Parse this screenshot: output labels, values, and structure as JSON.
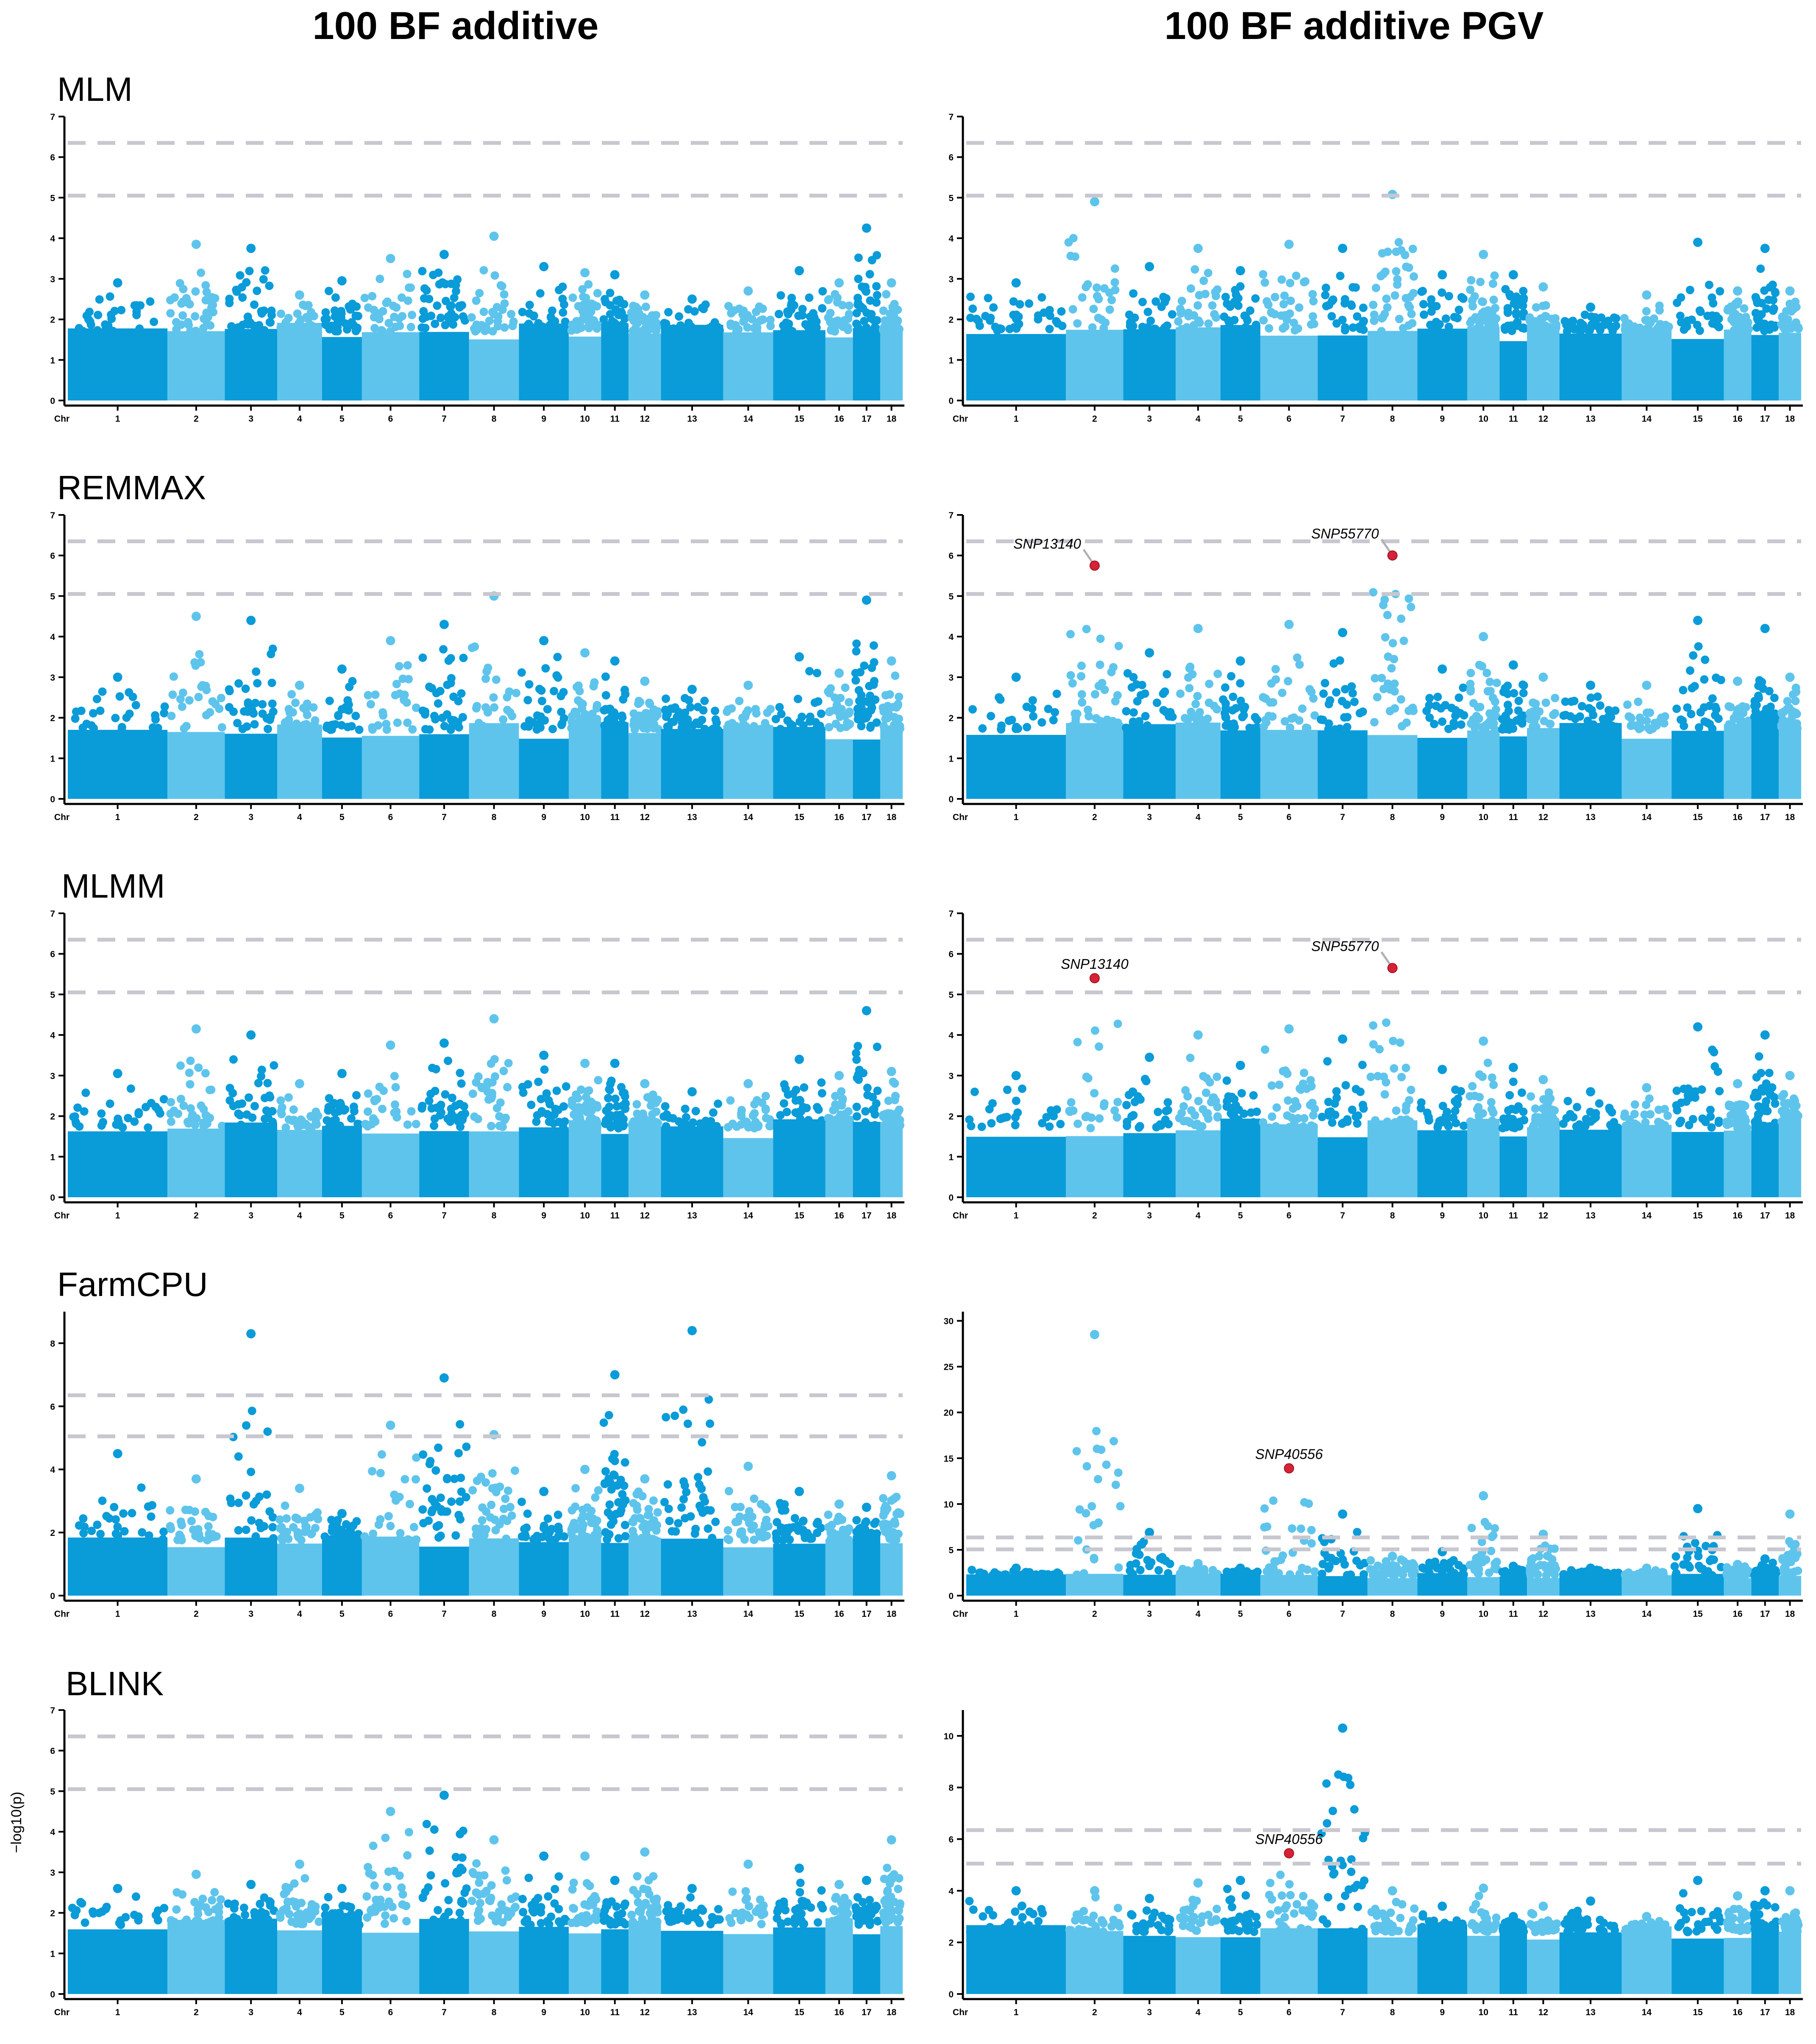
{
  "columns": [
    "100 BF additive",
    "100 BF additive PGV"
  ],
  "methods": [
    "MLM",
    "REMMAX",
    "MLMM",
    "FarmCPU",
    "BLINK"
  ],
  "y_axis_label": "−log10(p)",
  "colors": {
    "dark": "#0a9bd9",
    "light": "#5ec4ec",
    "threshold": "#c7c7cf",
    "highlight": "#d62236"
  },
  "chart_data": {
    "type": "scatter",
    "kind": "manhattan",
    "chromosomes": [
      "1",
      "2",
      "3",
      "4",
      "5",
      "6",
      "7",
      "8",
      "9",
      "10",
      "11",
      "12",
      "13",
      "14",
      "15",
      "16",
      "17",
      "18"
    ],
    "chr_label": "Chr",
    "thresholds": [
      5.05,
      6.35
    ],
    "panels": [
      {
        "method": "MLM",
        "column": "100 BF additive",
        "ylim": [
          0,
          7
        ],
        "yticks": [
          0,
          1,
          2,
          3,
          4,
          5,
          6,
          7
        ],
        "chr_peaks": [
          2.9,
          3.85,
          3.75,
          2.6,
          2.95,
          3.5,
          3.6,
          4.05,
          3.3,
          3.15,
          3.1,
          2.6,
          2.5,
          2.7,
          3.2,
          2.9,
          4.25,
          2.9
        ],
        "snps": []
      },
      {
        "method": "MLM",
        "column": "100 BF additive PGV",
        "ylim": [
          0,
          7
        ],
        "yticks": [
          0,
          1,
          2,
          3,
          4,
          5,
          6,
          7
        ],
        "chr_peaks": [
          2.9,
          4.9,
          3.3,
          3.75,
          3.2,
          3.85,
          3.75,
          5.08,
          3.1,
          3.6,
          3.1,
          2.8,
          2.3,
          2.6,
          3.9,
          2.7,
          3.75,
          2.7
        ],
        "snps": []
      },
      {
        "method": "REMMAX",
        "column": "100 BF additive",
        "ylim": [
          0,
          7
        ],
        "yticks": [
          0,
          1,
          2,
          3,
          4,
          5,
          6,
          7
        ],
        "chr_peaks": [
          3.0,
          4.5,
          4.4,
          2.8,
          3.2,
          3.9,
          4.3,
          5.0,
          3.9,
          3.6,
          3.4,
          2.9,
          2.7,
          2.8,
          3.5,
          3.1,
          4.9,
          3.4
        ],
        "snps": []
      },
      {
        "method": "REMMAX",
        "column": "100 BF additive PGV",
        "ylim": [
          0,
          7
        ],
        "yticks": [
          0,
          1,
          2,
          3,
          4,
          5,
          6,
          7
        ],
        "chr_peaks": [
          3.0,
          5.75,
          3.6,
          4.2,
          3.4,
          4.3,
          4.1,
          6.0,
          3.2,
          4.0,
          3.3,
          3.0,
          2.8,
          2.8,
          4.4,
          2.9,
          4.2,
          3.0
        ],
        "snps": [
          {
            "label": "SNP13140",
            "chr": "2",
            "value": 5.75
          },
          {
            "label": "SNP55770",
            "chr": "8",
            "value": 6.0
          }
        ]
      },
      {
        "method": "MLMM",
        "column": "100 BF additive",
        "ylim": [
          0,
          7
        ],
        "yticks": [
          0,
          1,
          2,
          3,
          4,
          5,
          6,
          7
        ],
        "chr_peaks": [
          3.05,
          4.15,
          4.0,
          2.8,
          3.05,
          3.75,
          3.8,
          4.4,
          3.5,
          3.3,
          3.3,
          2.8,
          2.6,
          2.8,
          3.4,
          3.0,
          4.6,
          3.1
        ],
        "snps": []
      },
      {
        "method": "MLMM",
        "column": "100 BF additive PGV",
        "ylim": [
          0,
          7
        ],
        "yticks": [
          0,
          1,
          2,
          3,
          4,
          5,
          6,
          7
        ],
        "chr_peaks": [
          3.0,
          5.4,
          3.45,
          4.0,
          3.25,
          4.15,
          3.9,
          5.65,
          3.15,
          3.85,
          3.2,
          2.9,
          2.6,
          2.7,
          4.2,
          2.8,
          4.0,
          3.0
        ],
        "snps": [
          {
            "label": "SNP13140",
            "chr": "2",
            "value": 5.4
          },
          {
            "label": "SNP55770",
            "chr": "8",
            "value": 5.65
          }
        ]
      },
      {
        "method": "FarmCPU",
        "column": "100 BF additive",
        "ylim": [
          0,
          9
        ],
        "yticks": [
          0,
          2,
          4,
          6,
          8
        ],
        "chr_peaks": [
          4.5,
          3.7,
          8.3,
          3.4,
          2.6,
          5.4,
          6.9,
          5.1,
          3.3,
          4.0,
          7.0,
          3.7,
          8.4,
          4.1,
          3.3,
          2.9,
          2.8,
          3.8
        ],
        "snps": []
      },
      {
        "method": "FarmCPU",
        "column": "100 BF additive PGV",
        "ylim": [
          0,
          31
        ],
        "yticks": [
          0,
          5,
          10,
          15,
          20,
          25,
          30
        ],
        "chr_peaks": [
          3.0,
          28.5,
          6.9,
          3.5,
          3.0,
          13.9,
          8.9,
          4.3,
          4.8,
          10.9,
          3.2,
          6.7,
          3.0,
          3.0,
          9.5,
          3.4,
          4.0,
          8.9
        ],
        "snps": [
          {
            "label": "SNP40556",
            "chr": "6",
            "value": 13.9
          }
        ]
      },
      {
        "method": "BLINK",
        "column": "100 BF additive",
        "ylim": [
          0,
          7
        ],
        "yticks": [
          0,
          1,
          2,
          3,
          4,
          5,
          6,
          7
        ],
        "chr_peaks": [
          2.6,
          2.95,
          2.7,
          3.2,
          2.6,
          4.5,
          4.9,
          3.8,
          3.4,
          3.4,
          2.8,
          3.5,
          2.6,
          3.2,
          3.1,
          2.7,
          2.8,
          3.8
        ],
        "snps": []
      },
      {
        "method": "BLINK",
        "column": "100 BF additive PGV",
        "ylim": [
          0,
          11
        ],
        "yticks": [
          0,
          2,
          4,
          6,
          8,
          10
        ],
        "chr_peaks": [
          4.0,
          4.0,
          3.7,
          4.3,
          4.4,
          5.45,
          10.3,
          4.0,
          3.4,
          4.1,
          3.0,
          3.4,
          3.6,
          3.0,
          4.4,
          3.8,
          4.0,
          4.0
        ],
        "snps": [
          {
            "label": "SNP40556",
            "chr": "6",
            "value": 5.45
          }
        ]
      }
    ]
  }
}
